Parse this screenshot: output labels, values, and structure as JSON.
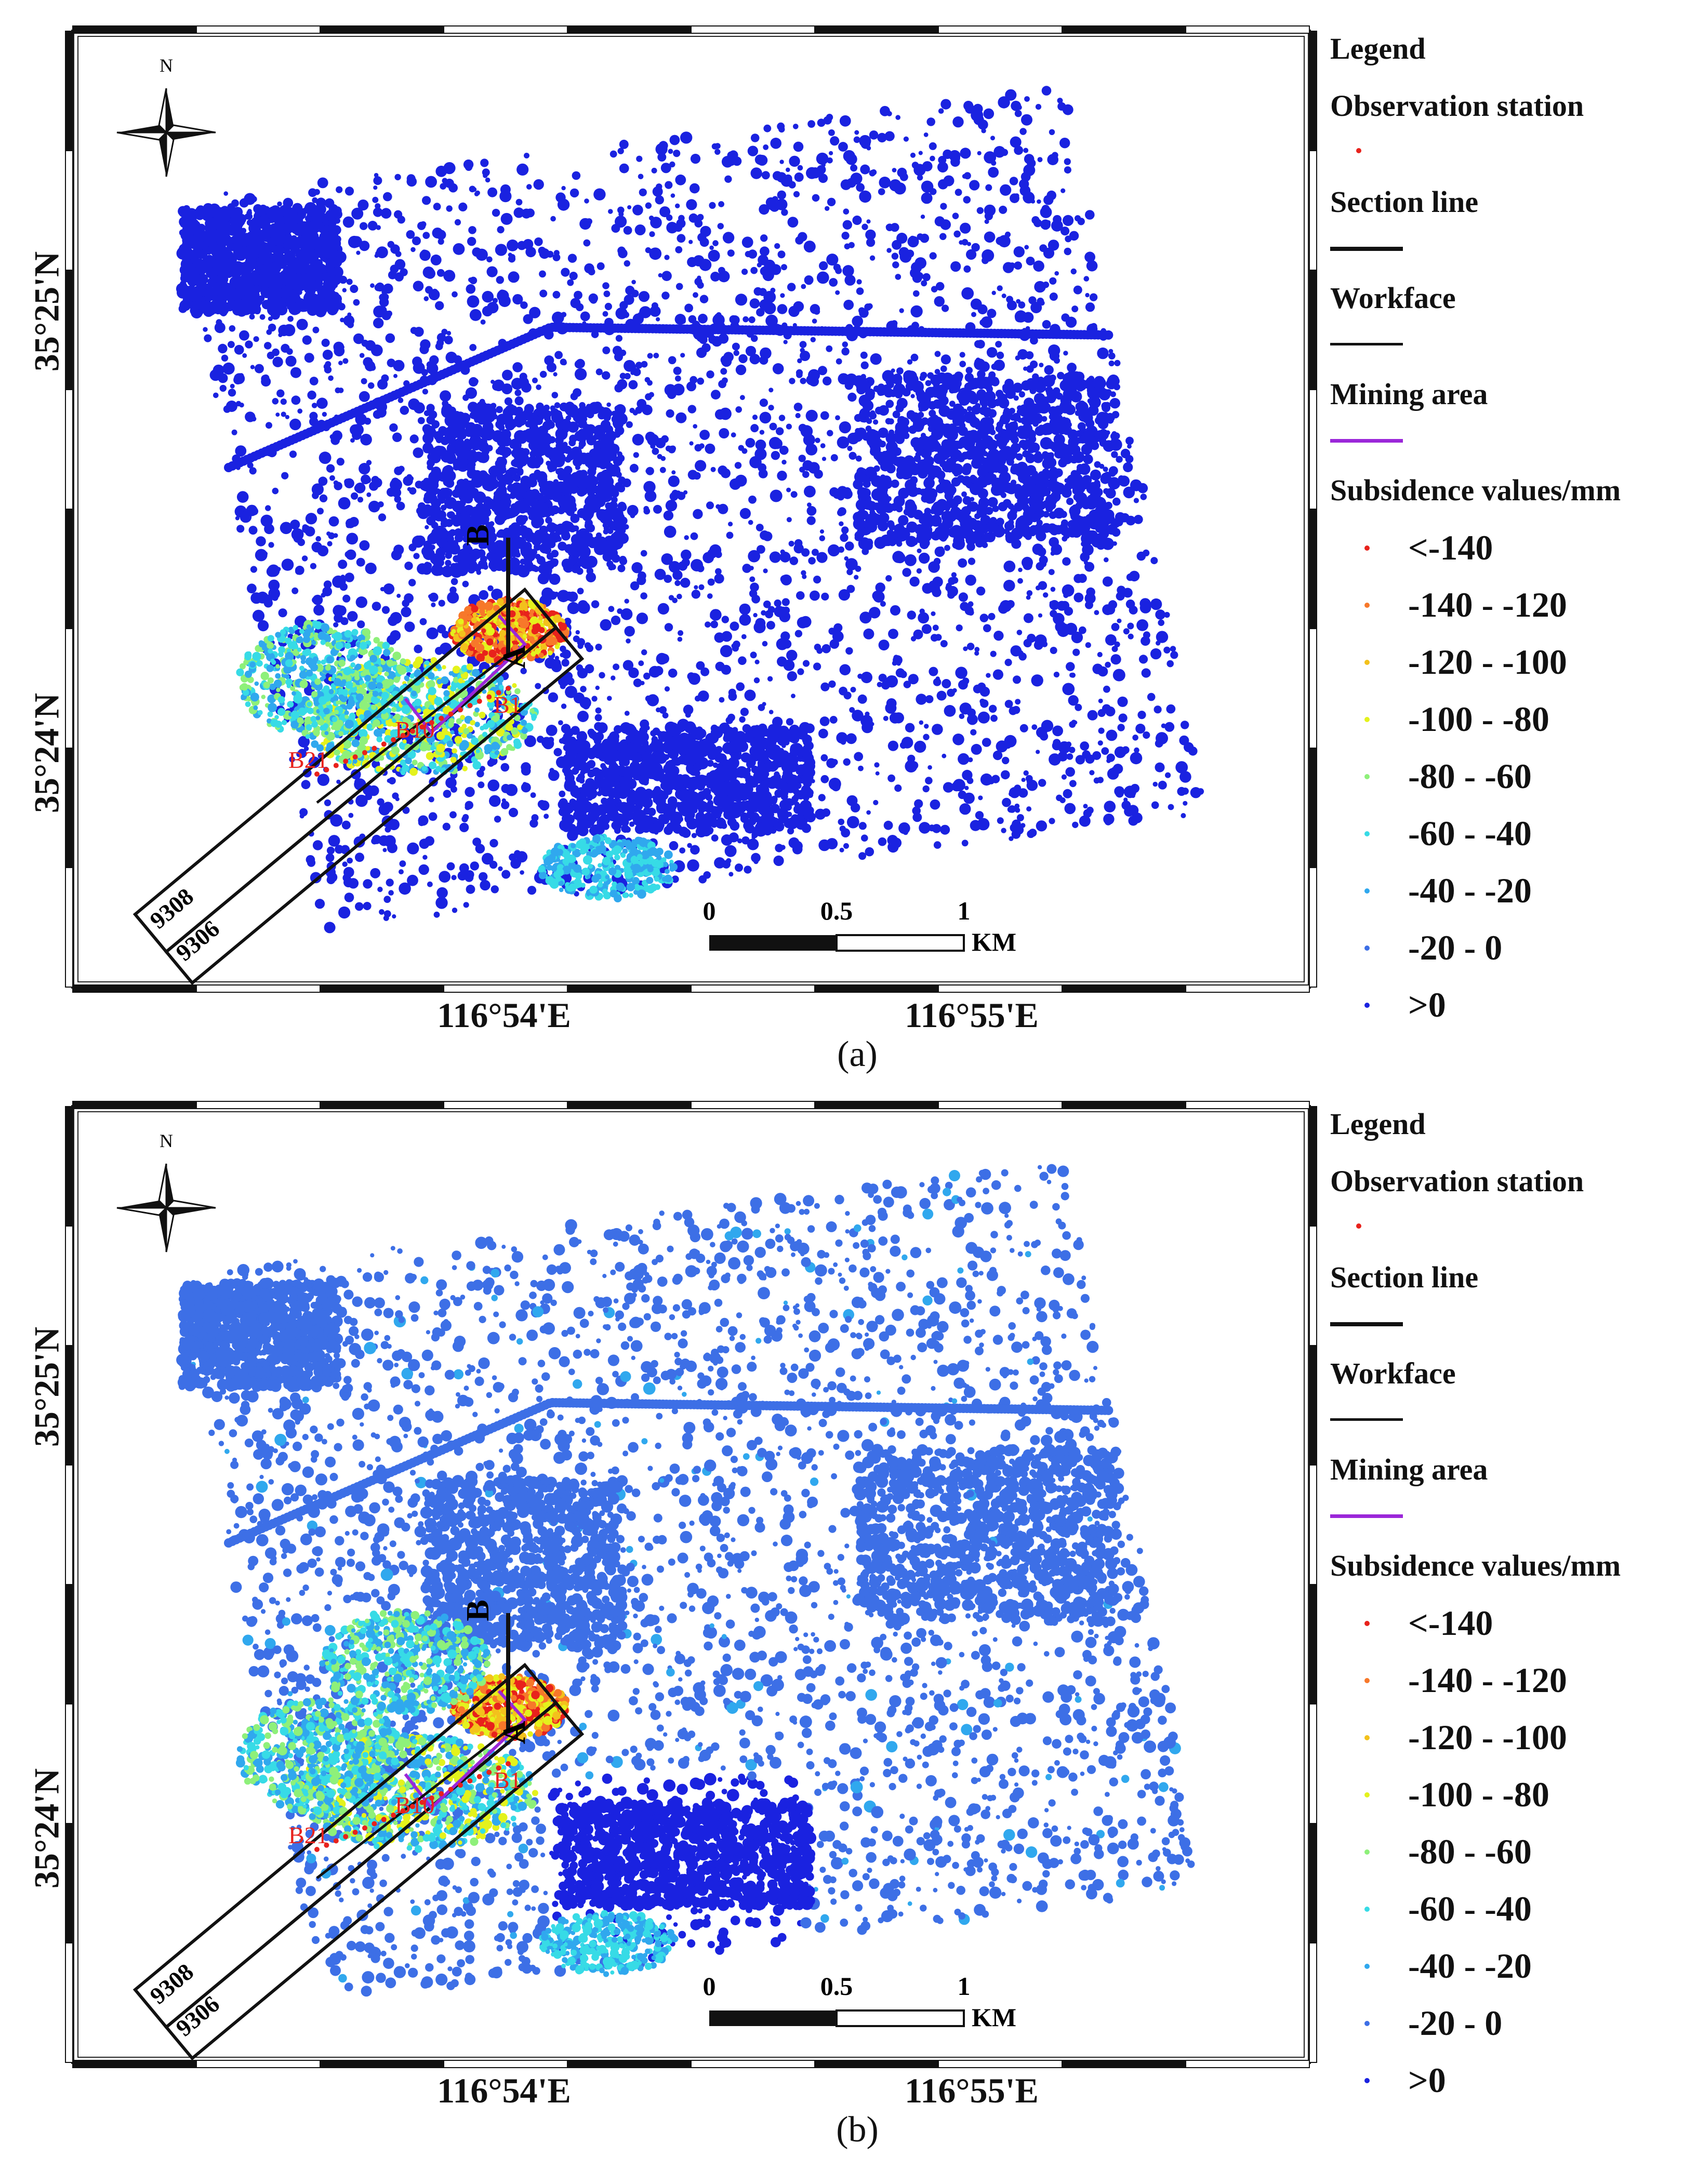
{
  "panels": [
    {
      "id": "a",
      "caption": "(a)",
      "lat_labels": [
        "35°25'N",
        "35°24'N"
      ],
      "lon_labels": [
        "116°54'E",
        "116°55'E"
      ],
      "north_label": "N",
      "section_labels": [
        "B",
        "A"
      ],
      "station_labels": [
        "B1",
        "B10",
        "B21"
      ],
      "workface_labels": [
        "9308",
        "9306"
      ],
      "scale_bar": {
        "ticks": [
          "0",
          "0.5",
          "1"
        ],
        "unit": "KM"
      },
      "background_dominant_class": ">0"
    },
    {
      "id": "b",
      "caption": "(b)",
      "lat_labels": [
        "35°25'N",
        "35°24'N"
      ],
      "lon_labels": [
        "116°54'E",
        "116°55'E"
      ],
      "north_label": "N",
      "section_labels": [
        "B",
        "A"
      ],
      "station_labels": [
        "B1",
        "B10",
        "B21"
      ],
      "workface_labels": [
        "9308",
        "9306"
      ],
      "scale_bar": {
        "ticks": [
          "0",
          "0.5",
          "1"
        ],
        "unit": "KM"
      },
      "background_dominant_class": "-20 - 0"
    }
  ],
  "legend": {
    "title": "Legend",
    "observation_station": "Observation station",
    "section_line": "Section line",
    "workface": "Workface",
    "mining_area": "Mining area",
    "subsidence_title": "Subsidence values/mm",
    "classes": [
      {
        "label": "<-140",
        "color": "#e8221c"
      },
      {
        "label": "-140 - -120",
        "color": "#f7782a"
      },
      {
        "label": "-120 - -100",
        "color": "#f3c11c"
      },
      {
        "label": "-100 - -80",
        "color": "#e4f21c"
      },
      {
        "label": "-80 - -60",
        "color": "#8ef07a"
      },
      {
        "label": "-60 - -40",
        "color": "#37dbe6"
      },
      {
        "label": "-40 - -20",
        "color": "#30a8ee"
      },
      {
        "label": "-20 - 0",
        "color": "#3d6fe6"
      },
      {
        "label": ">0",
        "color": "#1a22e0"
      }
    ],
    "station_color": "#e8221c",
    "mining_area_color": "#9b27d9",
    "line_color": "#111111"
  }
}
